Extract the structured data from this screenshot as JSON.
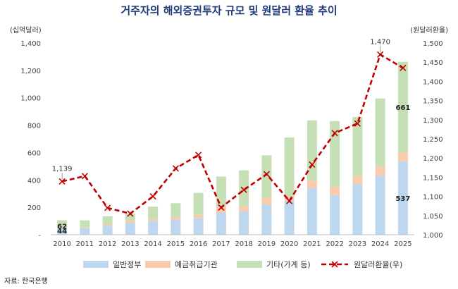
{
  "title": "거주자의 해외증권투자 규모 및 원달러 환율 추이",
  "source": "자료: 한국은행",
  "chart_data": {
    "type": "bar",
    "stacked": true,
    "title": "거주자의 해외증권투자 규모 및 원달러 환율 추이",
    "y_left_label": "(십억달러)",
    "y_right_label": "(원달러환율)",
    "ylim_left": [
      0,
      1400
    ],
    "ylim_right": [
      1000,
      1500
    ],
    "y_left_ticks": [
      "-",
      "200",
      "400",
      "600",
      "800",
      "1,000",
      "1,200",
      "1,400"
    ],
    "y_right_ticks": [
      "1,000",
      "1,050",
      "1,100",
      "1,150",
      "1,200",
      "1,250",
      "1,300",
      "1,350",
      "1,400",
      "1,450",
      "1,500"
    ],
    "categories": [
      "2010",
      "2011",
      "2012",
      "2013",
      "2014",
      "2015",
      "2016",
      "2017",
      "2018",
      "2019",
      "2020",
      "2021",
      "2022",
      "2023",
      "2024",
      "2025"
    ],
    "series": [
      {
        "name": "일반정부",
        "axis": "left",
        "color": "#bdd7ee",
        "values": [
          44,
          50,
          65,
          85,
          100,
          110,
          120,
          160,
          170,
          220,
          250,
          340,
          290,
          370,
          430,
          537
        ]
      },
      {
        "name": "예금취급기관",
        "axis": "left",
        "color": "#f8cbad",
        "values": [
          0,
          5,
          10,
          20,
          15,
          20,
          25,
          45,
          40,
          50,
          30,
          55,
          60,
          60,
          65,
          65
        ]
      },
      {
        "name": "기타(가계 등)",
        "axis": "left",
        "color": "#c5e0b4",
        "values": [
          62,
          50,
          60,
          50,
          90,
          100,
          160,
          220,
          260,
          310,
          430,
          440,
          480,
          430,
          500,
          661
        ]
      },
      {
        "name": "원달러환율(우)",
        "axis": "right",
        "type": "line",
        "color": "#c00000",
        "values": [
          1139,
          1153,
          1070,
          1055,
          1100,
          1173,
          1208,
          1071,
          1117,
          1158,
          1088,
          1183,
          1265,
          1290,
          1470,
          1435
        ]
      }
    ],
    "data_labels": [
      {
        "text": "62",
        "series": "기타(가계 등)",
        "category": "2010"
      },
      {
        "text": "44",
        "series": "일반정부",
        "category": "2010"
      },
      {
        "text": "661",
        "series": "기타(가계 등)",
        "category": "2025"
      },
      {
        "text": "537",
        "series": "일반정부",
        "category": "2025"
      },
      {
        "text": "1,139",
        "series": "원달러환율(우)",
        "category": "2010"
      },
      {
        "text": "1,470",
        "series": "원달러환율(우)",
        "category": "2024"
      }
    ],
    "legend": "bottom"
  }
}
